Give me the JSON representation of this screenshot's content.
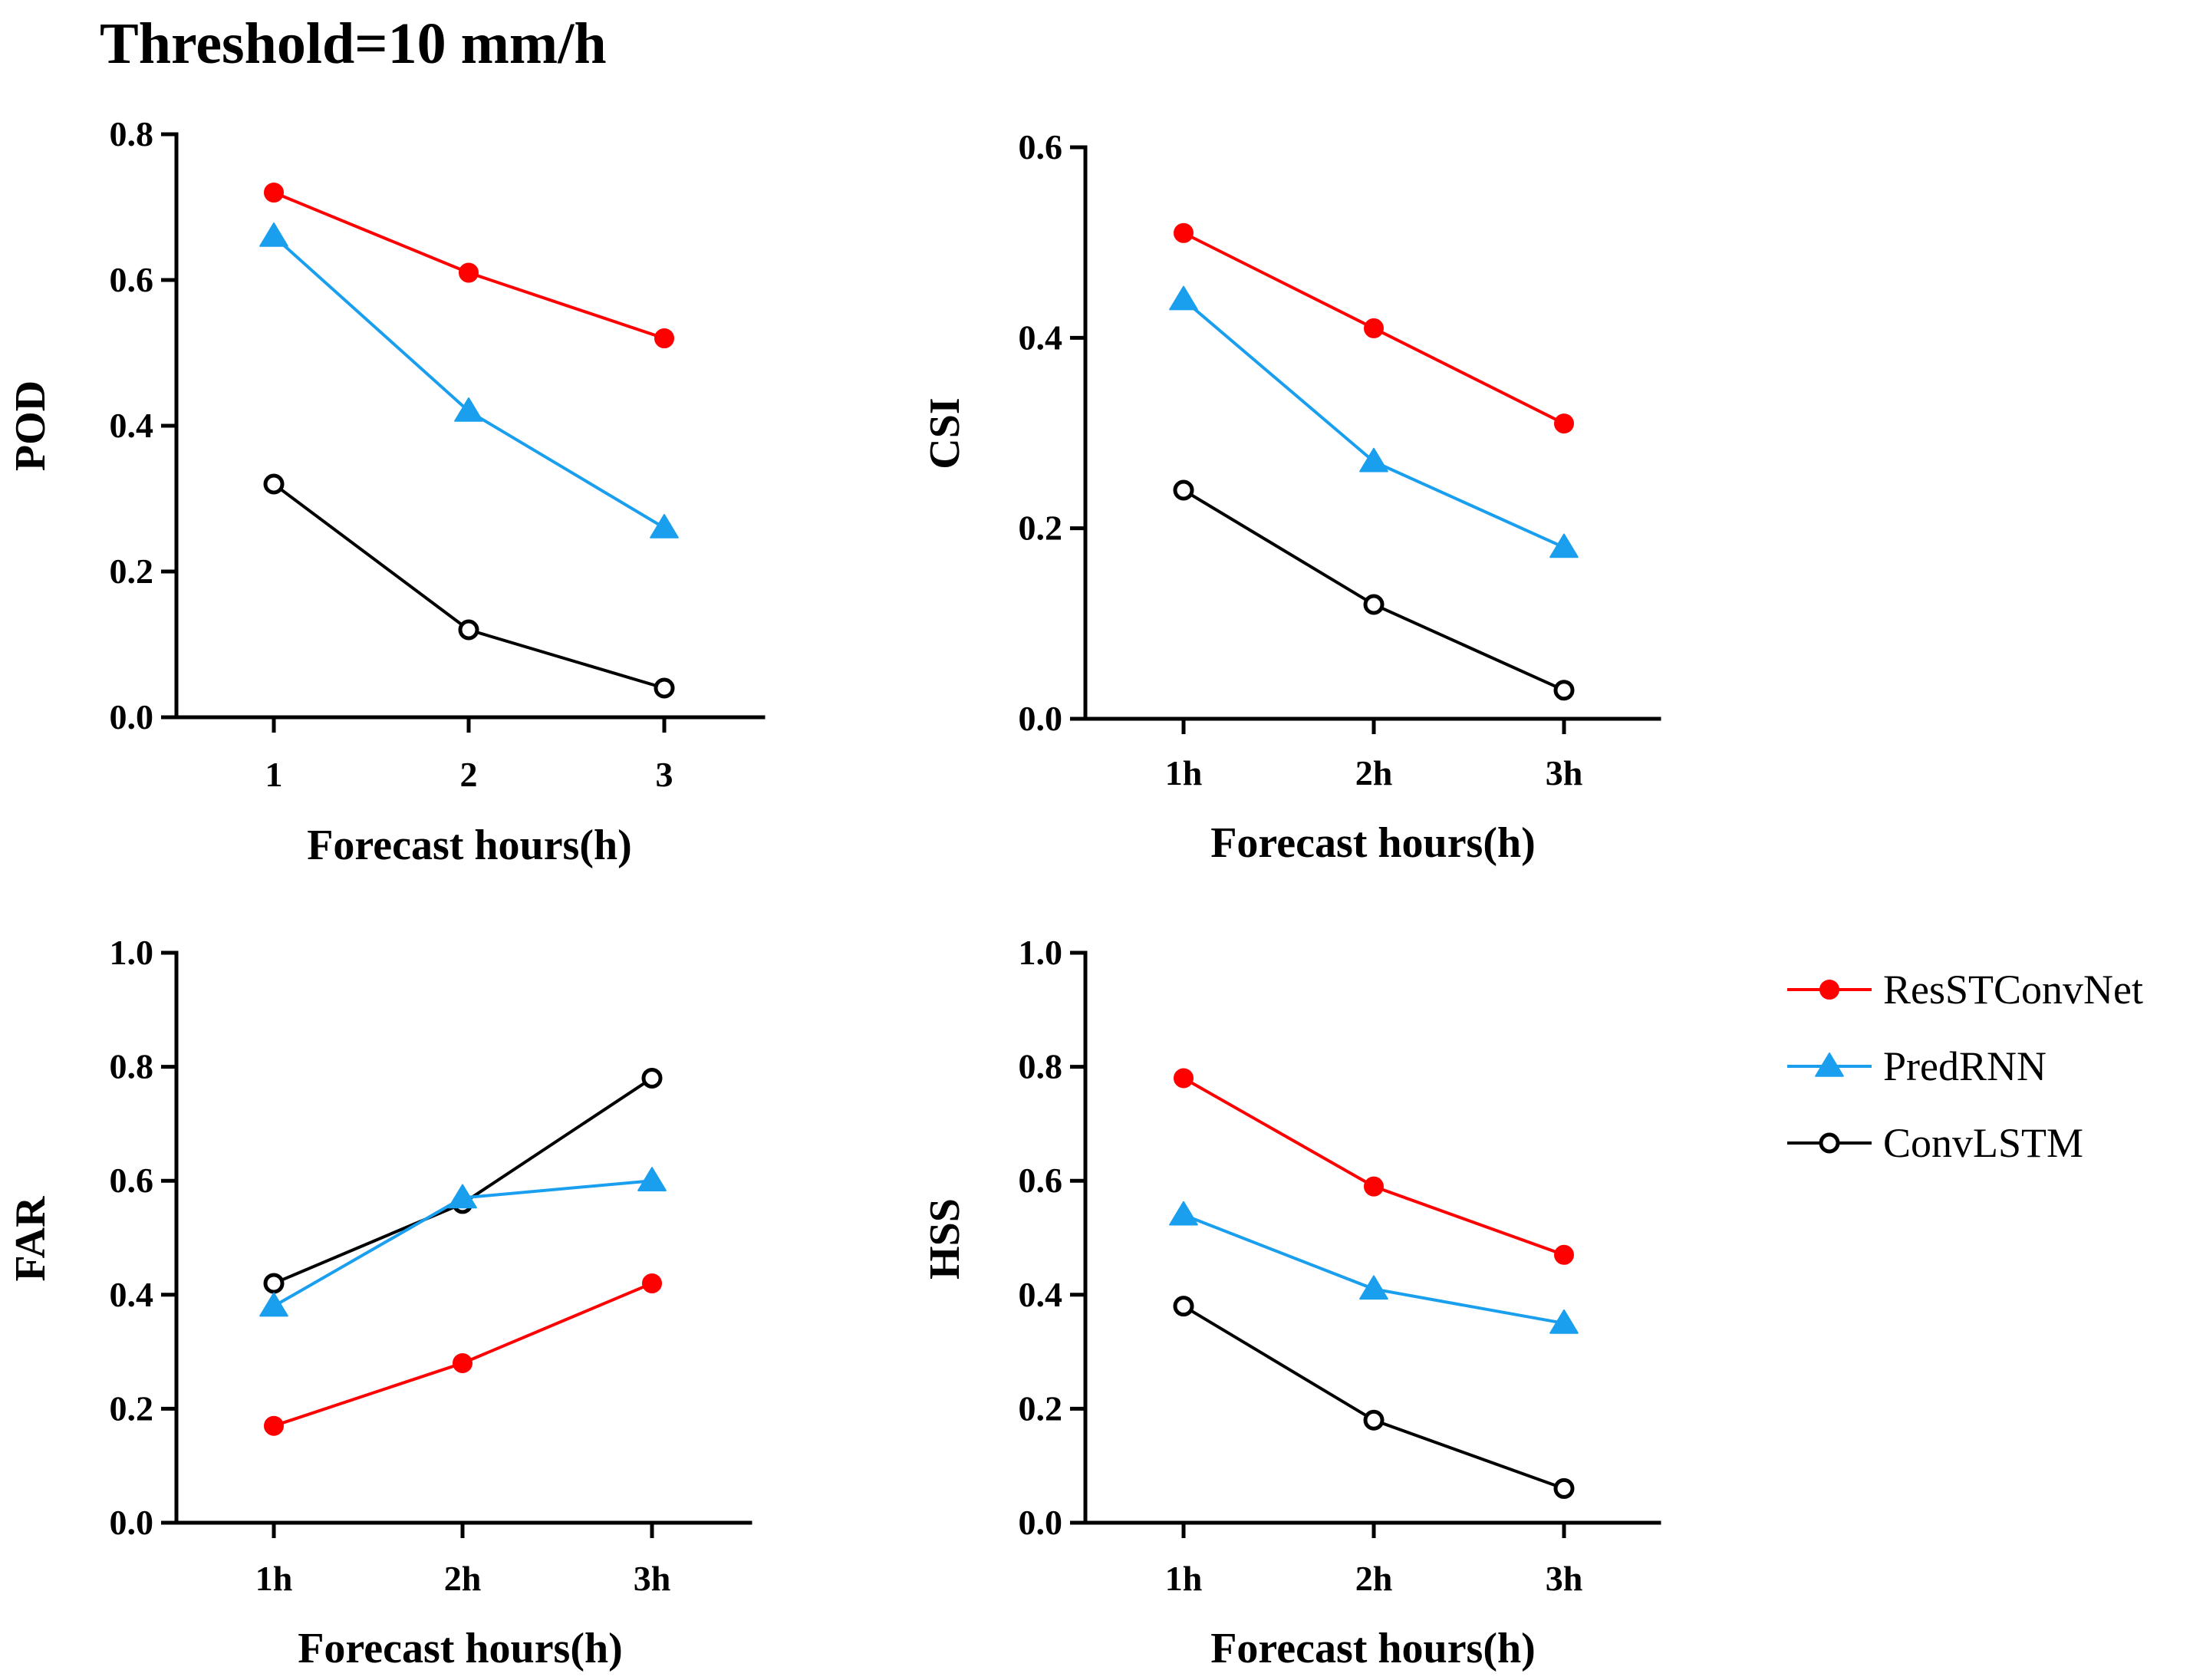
{
  "title": "Threshold=10 mm/h",
  "series_styles": [
    {
      "name": "ResSTConvNet",
      "color": "#ff0000",
      "marker": "circle-filled"
    },
    {
      "name": "PredRNN",
      "color": "#1a9fef",
      "marker": "triangle-filled"
    },
    {
      "name": "ConvLSTM",
      "color": "#000000",
      "marker": "circle-open"
    }
  ],
  "legend": {
    "placement": "right",
    "entries": [
      "ResSTConvNet",
      "PredRNN",
      "ConvLSTM"
    ]
  },
  "chart_data": [
    {
      "type": "line",
      "xlabel": "Forecast hours(h)",
      "ylabel": "POD",
      "categories": [
        "1",
        "2",
        "3"
      ],
      "ylim": [
        0,
        0.8
      ],
      "yticks": [
        "0.0",
        "0.2",
        "0.4",
        "0.6",
        "0.8"
      ],
      "series": [
        {
          "name": "ResSTConvNet",
          "values": [
            0.72,
            0.61,
            0.52
          ]
        },
        {
          "name": "PredRNN",
          "values": [
            0.66,
            0.42,
            0.26
          ]
        },
        {
          "name": "ConvLSTM",
          "values": [
            0.32,
            0.12,
            0.04
          ]
        }
      ]
    },
    {
      "type": "line",
      "xlabel": "Forecast hours(h)",
      "ylabel": "CSI",
      "categories": [
        "1h",
        "2h",
        "3h"
      ],
      "ylim": [
        0,
        0.6
      ],
      "yticks": [
        "0.0",
        "0.2",
        "0.4",
        "0.6"
      ],
      "series": [
        {
          "name": "ResSTConvNet",
          "values": [
            0.51,
            0.41,
            0.31
          ]
        },
        {
          "name": "PredRNN",
          "values": [
            0.44,
            0.27,
            0.18
          ]
        },
        {
          "name": "ConvLSTM",
          "values": [
            0.24,
            0.12,
            0.03
          ]
        }
      ]
    },
    {
      "type": "line",
      "xlabel": "Forecast hours(h)",
      "ylabel": "FAR",
      "categories": [
        "1h",
        "2h",
        "3h"
      ],
      "ylim": [
        0,
        1.0
      ],
      "yticks": [
        "0.0",
        "0.2",
        "0.4",
        "0.6",
        "0.8",
        "1.0"
      ],
      "series": [
        {
          "name": "ResSTConvNet",
          "values": [
            0.17,
            0.28,
            0.42
          ]
        },
        {
          "name": "PredRNN",
          "values": [
            0.38,
            0.57,
            0.6
          ]
        },
        {
          "name": "ConvLSTM",
          "values": [
            0.42,
            0.56,
            0.78
          ]
        }
      ]
    },
    {
      "type": "line",
      "xlabel": "Forecast hours(h)",
      "ylabel": "HSS",
      "categories": [
        "1h",
        "2h",
        "3h"
      ],
      "ylim": [
        0,
        1.0
      ],
      "yticks": [
        "0.0",
        "0.2",
        "0.4",
        "0.6",
        "0.8",
        "1.0"
      ],
      "series": [
        {
          "name": "ResSTConvNet",
          "values": [
            0.78,
            0.59,
            0.47
          ]
        },
        {
          "name": "PredRNN",
          "values": [
            0.54,
            0.41,
            0.35
          ]
        },
        {
          "name": "ConvLSTM",
          "values": [
            0.38,
            0.18,
            0.06
          ]
        }
      ]
    }
  ]
}
